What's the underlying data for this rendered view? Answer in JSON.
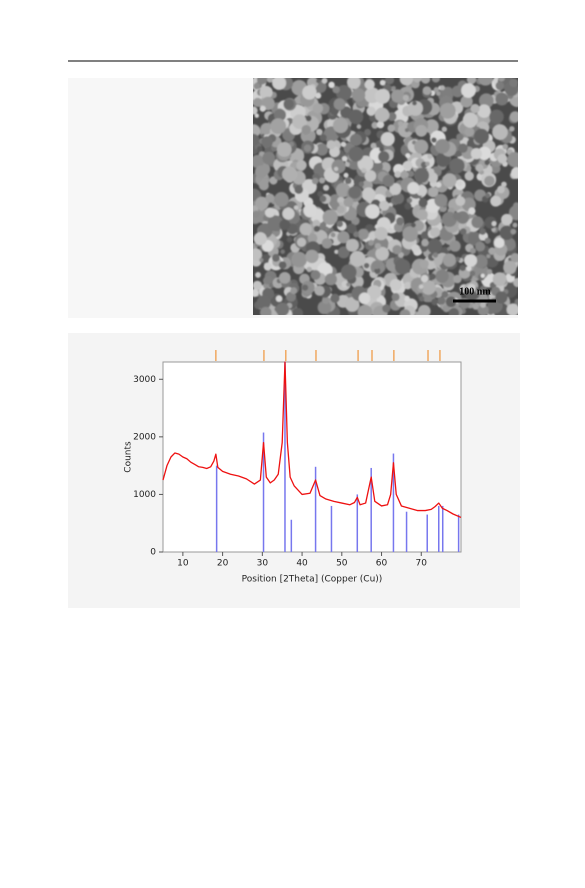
{
  "figure_1": {
    "scale_bar_label": "100 nm"
  },
  "chart_data": {
    "type": "line",
    "xlabel": "Position [2Theta] (Copper (Cu))",
    "ylabel": "Counts",
    "xlim": [
      5,
      80
    ],
    "ylim": [
      0,
      3300
    ],
    "xticks": [
      10,
      20,
      30,
      40,
      50,
      60,
      70
    ],
    "yticks": [
      0,
      1000,
      2000,
      3000
    ],
    "x": [
      5,
      6,
      7,
      8,
      9,
      10,
      11,
      12,
      13,
      14,
      15,
      16,
      17,
      17.8,
      18.3,
      18.8,
      20,
      22,
      24,
      26,
      28,
      29.5,
      30.3,
      31,
      32,
      33,
      34,
      35,
      35.7,
      36.3,
      37,
      38,
      40,
      42,
      43.4,
      44.5,
      46,
      48,
      50,
      52,
      53.2,
      53.9,
      54.6,
      56,
      57.4,
      58.3,
      60,
      61.5,
      62.3,
      63,
      63.7,
      65,
      67,
      69,
      71,
      72.5,
      73.5,
      74.4,
      75.3,
      76.5,
      78,
      80
    ],
    "series": [
      {
        "color": "#ee1111",
        "values": [
          1250,
          1500,
          1650,
          1720,
          1700,
          1650,
          1620,
          1560,
          1520,
          1480,
          1470,
          1450,
          1480,
          1580,
          1700,
          1470,
          1400,
          1350,
          1320,
          1270,
          1180,
          1250,
          1900,
          1300,
          1200,
          1250,
          1350,
          1900,
          3300,
          1900,
          1300,
          1150,
          1000,
          1020,
          1250,
          980,
          920,
          880,
          850,
          820,
          860,
          950,
          820,
          850,
          1300,
          880,
          800,
          820,
          1000,
          1550,
          1000,
          800,
          760,
          720,
          720,
          740,
          790,
          850,
          760,
          720,
          660,
          600
        ]
      }
    ],
    "reference_peaks": {
      "color": "#7777ee",
      "x": [
        18.5,
        30.3,
        35.7,
        37.3,
        43.4,
        47.4,
        53.9,
        57.4,
        63.0,
        66.3,
        71.5,
        74.4,
        75.4,
        79.4
      ],
      "values": [
        1500,
        2075,
        3300,
        560,
        1480,
        800,
        1000,
        1460,
        1710,
        700,
        650,
        800,
        800,
        650
      ]
    },
    "top_markers": {
      "color": "#f0a860",
      "x": [
        18.3,
        30.4,
        35.9,
        43.5,
        54.1,
        57.6,
        63.1,
        71.7,
        74.7
      ]
    }
  }
}
